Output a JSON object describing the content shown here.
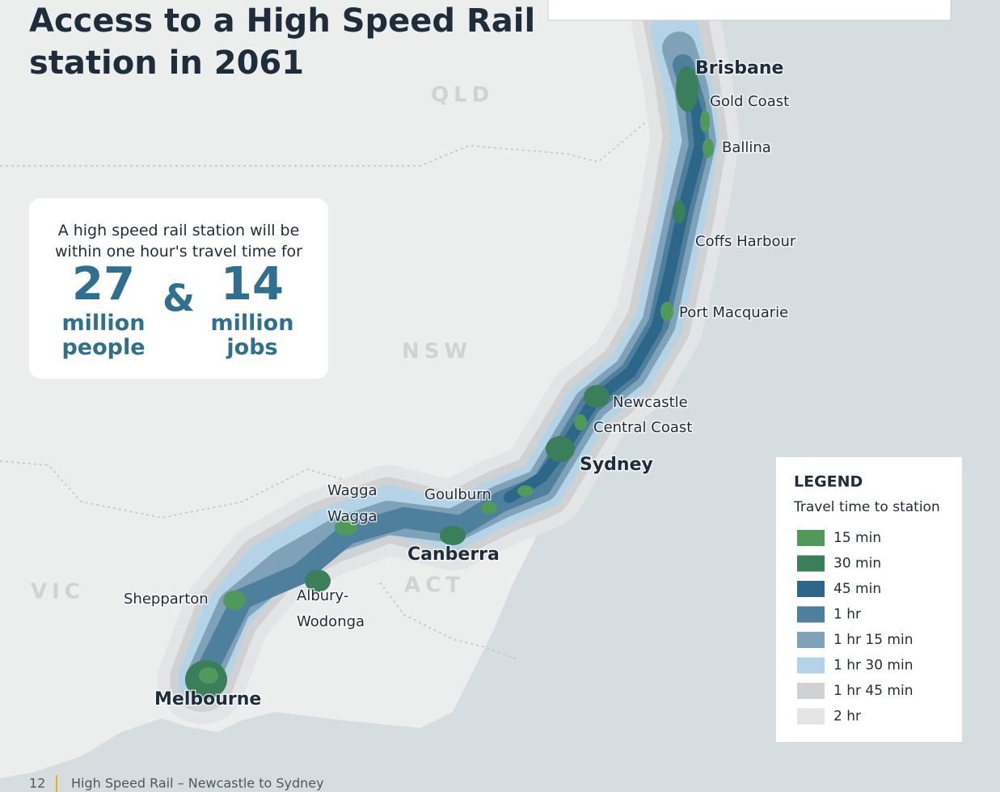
{
  "title": "Access to a High Speed Rail station in 2061",
  "callout": {
    "text": "A high speed rail station will be within one hour's travel time for",
    "stats": [
      {
        "number": 27,
        "label": "million people"
      },
      {
        "number": 14,
        "label": "million jobs"
      }
    ],
    "joiner": "&"
  },
  "regions": [
    "QLD",
    "NSW",
    "VIC",
    "ACT"
  ],
  "cities": [
    "Brisbane",
    "Gold Coast",
    "Ballina",
    "Coffs Harbour",
    "Port Macquarie",
    "Newcastle",
    "Central Coast",
    "Sydney",
    "Goulburn",
    "Canberra",
    "Wagga Wagga",
    "Albury-Wodonga",
    "Shepparton",
    "Melbourne"
  ],
  "legend": {
    "title": "LEGEND",
    "subtitle": "Travel time to station",
    "items": [
      {
        "label": "15 min",
        "color": "#4f9a5a"
      },
      {
        "label": "30 min",
        "color": "#3a7f5a"
      },
      {
        "label": "45 min",
        "color": "#2d6689"
      },
      {
        "label": "1 hr",
        "color": "#4e7f9c"
      },
      {
        "label": "1 hr 15 min",
        "color": "#7fa2b8"
      },
      {
        "label": "1 hr 30 min",
        "color": "#b5d3e6"
      },
      {
        "label": "1 hr 45 min",
        "color": "#cfd1d3"
      },
      {
        "label": "2 hr",
        "color": "#e3e4e5"
      }
    ]
  },
  "footer": {
    "page": 12,
    "text": "High Speed Rail – Newcastle to Sydney"
  }
}
